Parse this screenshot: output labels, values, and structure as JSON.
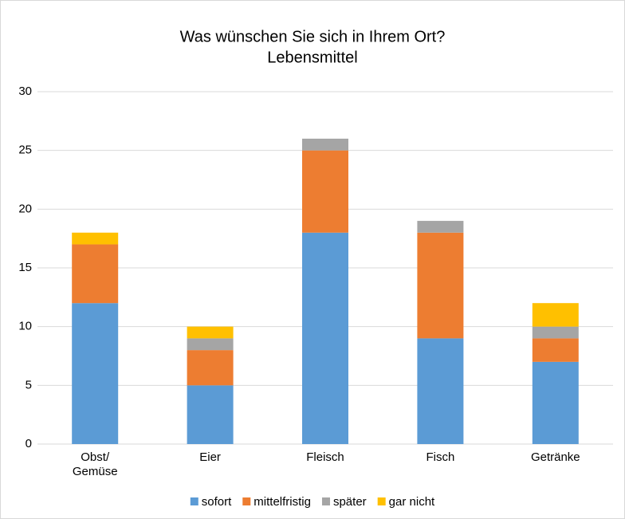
{
  "chart_data": {
    "type": "stacked_bar",
    "title": [
      "Was wünschen Sie sich in Ihrem Ort?",
      "Lebensmittel"
    ],
    "categories": [
      "Obst/\nGemüse",
      "Eier",
      "Fleisch",
      "Fisch",
      "Getränke"
    ],
    "series": [
      {
        "name": "sofort",
        "color": "#5b9bd5",
        "values": [
          12,
          5,
          18,
          9,
          7
        ]
      },
      {
        "name": "mittelfristig",
        "color": "#ed7d31",
        "values": [
          5,
          3,
          7,
          9,
          2
        ]
      },
      {
        "name": "später",
        "color": "#a5a5a5",
        "values": [
          0,
          1,
          1,
          1,
          1
        ]
      },
      {
        "name": "gar nicht",
        "color": "#ffc000",
        "values": [
          1,
          1,
          0,
          0,
          2
        ]
      }
    ],
    "ylim": [
      0,
      30
    ],
    "yticks": [
      0,
      5,
      10,
      15,
      20,
      25,
      30
    ],
    "grid": true,
    "legend": "bottom"
  }
}
